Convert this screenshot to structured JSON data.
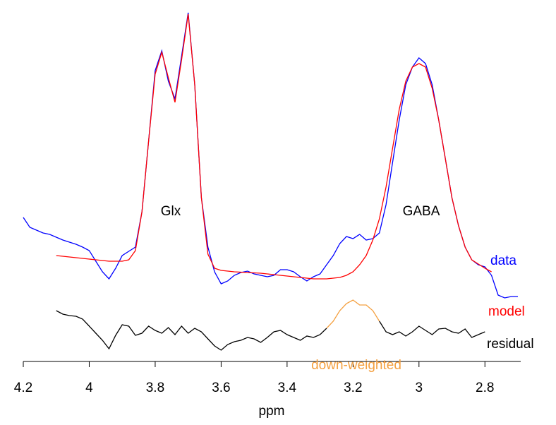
{
  "chart_data": {
    "type": "line",
    "xlabel": "ppm",
    "annotations": [
      "Glx",
      "GABA"
    ],
    "xlim": [
      4.2,
      2.7
    ],
    "xticks": [
      4.2,
      4,
      3.8,
      3.6,
      3.4,
      3.2,
      3,
      2.8
    ],
    "ylim": [
      0,
      100
    ],
    "x": [
      4.2,
      4.18,
      4.16,
      4.14,
      4.12,
      4.1,
      4.08,
      4.06,
      4.04,
      4.02,
      4,
      3.98,
      3.96,
      3.94,
      3.92,
      3.9,
      3.88,
      3.86,
      3.84,
      3.82,
      3.8,
      3.78,
      3.76,
      3.74,
      3.72,
      3.7,
      3.68,
      3.66,
      3.64,
      3.62,
      3.6,
      3.58,
      3.56,
      3.54,
      3.52,
      3.5,
      3.48,
      3.46,
      3.44,
      3.42,
      3.4,
      3.38,
      3.36,
      3.34,
      3.32,
      3.3,
      3.28,
      3.26,
      3.24,
      3.22,
      3.2,
      3.18,
      3.16,
      3.14,
      3.12,
      3.1,
      3.08,
      3.06,
      3.04,
      3.02,
      3,
      2.98,
      2.96,
      2.94,
      2.92,
      2.9,
      2.88,
      2.86,
      2.84,
      2.82,
      2.8,
      2.78,
      2.76,
      2.74,
      2.72,
      2.7
    ],
    "series": [
      {
        "name": "data",
        "color": "#0000ff",
        "values": [
          40.4,
          37.6,
          36.8,
          36,
          35.6,
          34.8,
          34,
          33.4,
          32.8,
          32,
          31,
          28,
          25,
          23,
          26,
          29.6,
          30.8,
          32,
          42,
          62,
          82,
          87.6,
          79,
          74,
          86,
          98.4,
          78,
          46,
          32,
          25,
          21.6,
          22.4,
          24,
          24.8,
          25.2,
          24.4,
          24,
          23.6,
          24,
          25.6,
          25.6,
          25,
          23.6,
          22.4,
          23.6,
          24.4,
          27,
          29.6,
          33,
          35,
          34.4,
          35.6,
          34,
          34.4,
          36,
          44,
          56,
          68,
          78,
          83,
          85.6,
          84,
          78,
          68,
          57,
          46,
          38,
          32,
          28.4,
          27,
          26.4,
          24,
          18.4,
          17.6,
          18,
          18
        ]
      },
      {
        "name": "model",
        "color": "#ff0000",
        "values": [
          null,
          null,
          null,
          null,
          null,
          29.6,
          29.4,
          29.2,
          29,
          28.8,
          28.6,
          28.4,
          28.2,
          28,
          28,
          28,
          28.4,
          31,
          42,
          62,
          81,
          87.2,
          80,
          73,
          85,
          98,
          78,
          46,
          30,
          26,
          25.4,
          25.2,
          25,
          24.9,
          24.8,
          24.7,
          24.6,
          24.4,
          24.2,
          24,
          23.8,
          23.6,
          23.4,
          23.2,
          23,
          23,
          23,
          23.2,
          23.4,
          24,
          25,
          27,
          29.6,
          34,
          40,
          49,
          60,
          71,
          79,
          83,
          84,
          83,
          77,
          68,
          57,
          46,
          38,
          32,
          28.4,
          27.2,
          26,
          25,
          null,
          null,
          null,
          null
        ]
      },
      {
        "name": "residual",
        "color": "#000000",
        "values": [
          null,
          null,
          null,
          null,
          null,
          14,
          13,
          12.6,
          12.4,
          11.6,
          9.6,
          7.6,
          5.6,
          3.2,
          7,
          10,
          9.6,
          7,
          7.6,
          9.6,
          8.4,
          7.6,
          9.2,
          7.2,
          9.6,
          7.6,
          9,
          8,
          6,
          4,
          2.8,
          4.4,
          5.2,
          5.6,
          6.4,
          6,
          5,
          6.4,
          8,
          8.4,
          7.2,
          6.4,
          5.6,
          6.8,
          6.4,
          7.2,
          9,
          null,
          null,
          null,
          null,
          null,
          null,
          null,
          11,
          8,
          7.2,
          8,
          6.8,
          8,
          9.6,
          8.4,
          7.2,
          8.8,
          9,
          8,
          7.6,
          8.8,
          6.4,
          7.2,
          8,
          null,
          null,
          null,
          null,
          null
        ]
      },
      {
        "name": "down-weighted",
        "color": "#f4a040",
        "values": [
          null,
          null,
          null,
          null,
          null,
          null,
          null,
          null,
          null,
          null,
          null,
          null,
          null,
          null,
          null,
          null,
          null,
          null,
          null,
          null,
          null,
          null,
          null,
          null,
          null,
          null,
          null,
          null,
          null,
          null,
          null,
          null,
          null,
          null,
          null,
          null,
          null,
          null,
          null,
          null,
          null,
          null,
          null,
          null,
          null,
          null,
          9,
          11,
          14,
          16,
          17,
          15.6,
          15.6,
          14,
          11,
          null,
          null,
          null,
          null,
          null,
          null,
          null,
          null,
          null,
          null,
          null,
          null,
          null,
          null,
          null,
          null,
          null,
          null,
          null,
          null,
          null
        ]
      }
    ]
  }
}
